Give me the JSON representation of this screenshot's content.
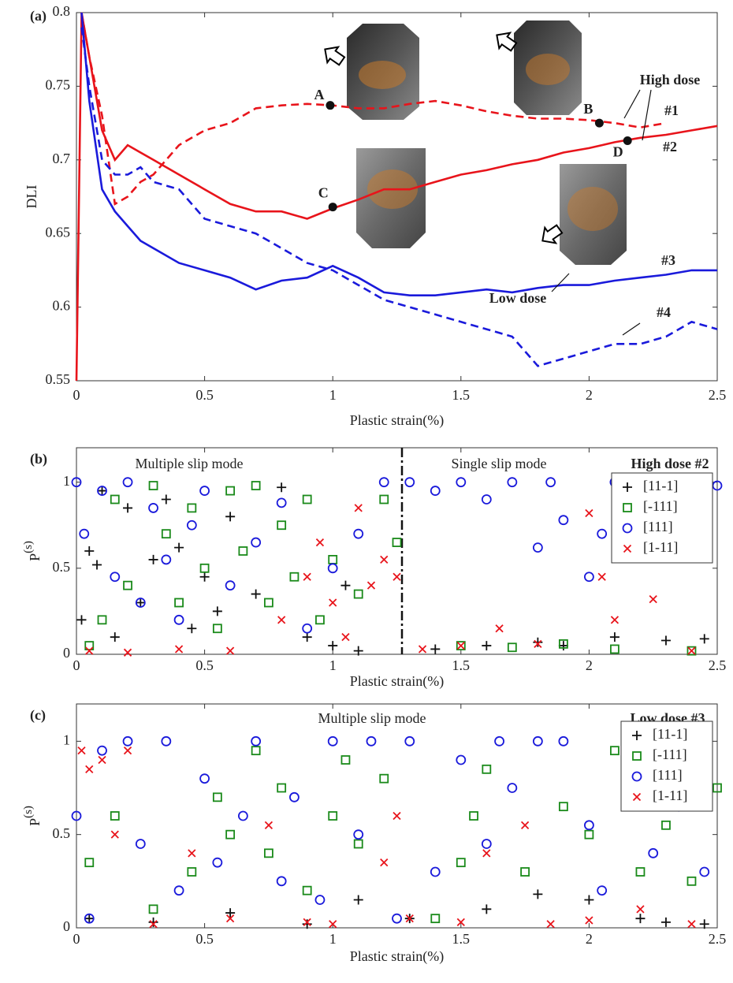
{
  "chart_data": [
    {
      "type": "line",
      "panel_label": "(a)",
      "xlabel": "Plastic strain(%)",
      "ylabel": "DLI",
      "xlim": [
        0,
        2.5
      ],
      "xticks": [
        0,
        0.5,
        1,
        1.5,
        2,
        2.5
      ],
      "ylim": [
        0.55,
        0.8
      ],
      "yticks": [
        0.55,
        0.6,
        0.65,
        0.7,
        0.75,
        0.8
      ],
      "x": [
        0,
        0.02,
        0.05,
        0.1,
        0.15,
        0.2,
        0.25,
        0.3,
        0.4,
        0.5,
        0.6,
        0.7,
        0.8,
        0.9,
        1.0,
        1.1,
        1.2,
        1.3,
        1.4,
        1.5,
        1.6,
        1.7,
        1.8,
        1.9,
        2.0,
        2.1,
        2.2,
        2.3,
        2.4,
        2.5
      ],
      "series": [
        {
          "name": "#1",
          "color": "#e8141b",
          "style": "dashed",
          "values": [
            null,
            0.8,
            0.77,
            0.73,
            0.67,
            0.675,
            0.685,
            0.69,
            0.71,
            0.72,
            0.725,
            0.735,
            0.737,
            0.738,
            0.737,
            0.735,
            0.735,
            0.738,
            0.74,
            0.737,
            0.733,
            0.73,
            0.728,
            0.728,
            0.727,
            0.725,
            0.722,
            0.725,
            null,
            null
          ]
        },
        {
          "name": "#2",
          "color": "#e8141b",
          "style": "solid",
          "values": [
            0.55,
            0.8,
            0.77,
            0.72,
            0.7,
            0.71,
            0.705,
            0.7,
            0.69,
            0.68,
            0.67,
            0.665,
            0.665,
            0.66,
            0.667,
            0.673,
            0.68,
            0.68,
            0.685,
            0.69,
            0.693,
            0.697,
            0.7,
            0.705,
            0.708,
            0.712,
            0.715,
            0.717,
            0.72,
            0.723
          ]
        },
        {
          "name": "#3",
          "color": "#1a1adb",
          "style": "solid",
          "values": [
            null,
            0.8,
            0.74,
            0.68,
            0.665,
            0.655,
            0.645,
            0.64,
            0.63,
            0.625,
            0.62,
            0.612,
            0.618,
            0.62,
            0.628,
            0.62,
            0.61,
            0.608,
            0.608,
            0.61,
            0.612,
            0.61,
            0.613,
            0.615,
            0.615,
            0.618,
            0.62,
            0.622,
            0.625,
            0.625
          ]
        },
        {
          "name": "#4",
          "color": "#1a1adb",
          "style": "dashed",
          "values": [
            null,
            0.79,
            0.75,
            0.7,
            0.69,
            0.69,
            0.695,
            0.685,
            0.68,
            0.66,
            0.655,
            0.65,
            0.64,
            0.63,
            0.625,
            0.615,
            0.605,
            0.6,
            0.595,
            0.59,
            0.585,
            0.58,
            0.56,
            0.565,
            0.57,
            0.575,
            0.575,
            0.58,
            0.59,
            0.585
          ]
        }
      ],
      "points": [
        {
          "label": "A",
          "x": 0.99,
          "y": 0.737
        },
        {
          "label": "B",
          "x": 2.04,
          "y": 0.725
        },
        {
          "label": "C",
          "x": 1.0,
          "y": 0.668
        },
        {
          "label": "D",
          "x": 2.15,
          "y": 0.713
        }
      ],
      "annotations": [
        {
          "text": "High dose",
          "color": "#e8141b"
        },
        {
          "text": "#1",
          "color": "#e8141b"
        },
        {
          "text": "#2",
          "color": "#e8141b"
        },
        {
          "text": "#3",
          "color": "#1a1adb"
        },
        {
          "text": "Low dose",
          "color": "#1a1adb"
        },
        {
          "text": "#4",
          "color": "#1a1adb"
        }
      ]
    },
    {
      "type": "scatter",
      "panel_label": "(b)",
      "xlabel": "Plastic strain(%)",
      "ylabel": "P",
      "ylabel_superscript": "(s)",
      "xlim": [
        0,
        2.5
      ],
      "xticks": [
        0,
        0.5,
        1,
        1.5,
        2,
        2.5
      ],
      "ylim": [
        0,
        1.2
      ],
      "yticks": [
        0,
        0.5,
        1
      ],
      "legend": "upper right",
      "divider_x": 1.27,
      "annotations": [
        {
          "text": "Multiple slip mode",
          "color": "#222"
        },
        {
          "text": "Single slip mode",
          "color": "#222"
        },
        {
          "text": "High dose #2",
          "color": "#e8141b"
        }
      ],
      "series": [
        {
          "name": "[11-1]",
          "color": "#111111",
          "marker": "+",
          "x": [
            0.02,
            0.05,
            0.08,
            0.1,
            0.15,
            0.2,
            0.25,
            0.3,
            0.35,
            0.4,
            0.45,
            0.5,
            0.55,
            0.6,
            0.7,
            0.8,
            0.9,
            1.0,
            1.05,
            1.1,
            1.4,
            1.6,
            1.8,
            1.9,
            2.1,
            2.3,
            2.45
          ],
          "values": [
            0.2,
            0.6,
            0.52,
            0.95,
            0.1,
            0.85,
            0.3,
            0.55,
            0.9,
            0.62,
            0.15,
            0.45,
            0.25,
            0.8,
            0.35,
            0.97,
            0.1,
            0.05,
            0.4,
            0.02,
            0.03,
            0.05,
            0.07,
            0.05,
            0.1,
            0.08,
            0.09
          ]
        },
        {
          "name": "[-111]",
          "color": "#1a8a1a",
          "marker": "s",
          "x": [
            0.05,
            0.1,
            0.15,
            0.2,
            0.3,
            0.35,
            0.4,
            0.45,
            0.5,
            0.55,
            0.6,
            0.65,
            0.7,
            0.75,
            0.8,
            0.85,
            0.9,
            0.95,
            1.0,
            1.1,
            1.2,
            1.25,
            1.5,
            1.7,
            1.9,
            2.1,
            2.4
          ],
          "values": [
            0.05,
            0.2,
            0.9,
            0.4,
            0.98,
            0.7,
            0.3,
            0.85,
            0.5,
            0.15,
            0.95,
            0.6,
            0.98,
            0.3,
            0.75,
            0.45,
            0.9,
            0.2,
            0.55,
            0.35,
            0.9,
            0.65,
            0.05,
            0.04,
            0.06,
            0.03,
            0.02
          ]
        },
        {
          "name": "[111]",
          "color": "#1a1adb",
          "marker": "o",
          "x": [
            0,
            0.03,
            0.1,
            0.15,
            0.2,
            0.25,
            0.3,
            0.35,
            0.4,
            0.45,
            0.5,
            0.6,
            0.7,
            0.8,
            0.9,
            1.0,
            1.1,
            1.2,
            1.3,
            1.4,
            1.5,
            1.6,
            1.7,
            1.8,
            1.85,
            1.9,
            2.0,
            2.05,
            2.1,
            2.2,
            2.3,
            2.4,
            2.5
          ],
          "values": [
            1,
            0.7,
            0.95,
            0.45,
            1,
            0.3,
            0.85,
            0.55,
            0.2,
            0.75,
            0.95,
            0.4,
            0.65,
            0.88,
            0.15,
            0.5,
            0.7,
            1,
            1,
            0.95,
            1,
            0.9,
            1,
            0.62,
            1,
            0.78,
            0.45,
            0.7,
            1,
            1,
            1,
            1,
            0.98
          ]
        },
        {
          "name": "[1-11]",
          "color": "#e8141b",
          "marker": "x",
          "x": [
            0.05,
            0.2,
            0.4,
            0.6,
            0.8,
            0.9,
            0.95,
            1.0,
            1.05,
            1.1,
            1.15,
            1.2,
            1.25,
            1.35,
            1.5,
            1.65,
            1.8,
            2.0,
            2.05,
            2.1,
            2.25,
            2.4
          ],
          "values": [
            0.02,
            0.01,
            0.03,
            0.02,
            0.2,
            0.45,
            0.65,
            0.3,
            0.1,
            0.85,
            0.4,
            0.55,
            0.45,
            0.03,
            0.05,
            0.15,
            0.06,
            0.82,
            0.45,
            0.2,
            0.32,
            0.02
          ]
        }
      ]
    },
    {
      "type": "scatter",
      "panel_label": "(c)",
      "xlabel": "Plastic strain(%)",
      "ylabel": "P",
      "ylabel_superscript": "(s)",
      "xlim": [
        0,
        2.5
      ],
      "xticks": [
        0,
        0.5,
        1,
        1.5,
        2,
        2.5
      ],
      "ylim": [
        0,
        1.2
      ],
      "yticks": [
        0,
        0.5,
        1
      ],
      "legend": "upper right",
      "annotations": [
        {
          "text": "Multiple slip mode",
          "color": "#222"
        },
        {
          "text": "Low dose #3",
          "color": "#1a1adb"
        }
      ],
      "series": [
        {
          "name": "[11-1]",
          "color": "#111111",
          "marker": "+",
          "x": [
            0.05,
            0.3,
            0.6,
            0.9,
            1.1,
            1.3,
            1.6,
            1.8,
            2.0,
            2.2,
            2.3,
            2.45
          ],
          "values": [
            0.05,
            0.03,
            0.08,
            0.02,
            0.15,
            0.05,
            0.1,
            0.18,
            0.15,
            0.05,
            0.03,
            0.02
          ]
        },
        {
          "name": "[-111]",
          "color": "#1a8a1a",
          "marker": "s",
          "x": [
            0.05,
            0.15,
            0.3,
            0.45,
            0.55,
            0.6,
            0.7,
            0.75,
            0.8,
            0.9,
            1.0,
            1.05,
            1.1,
            1.2,
            1.4,
            1.5,
            1.55,
            1.6,
            1.75,
            1.9,
            2.0,
            2.1,
            2.2,
            2.3,
            2.4,
            2.5
          ],
          "values": [
            0.35,
            0.6,
            0.1,
            0.3,
            0.7,
            0.5,
            0.95,
            0.4,
            0.75,
            0.2,
            0.6,
            0.9,
            0.45,
            0.8,
            0.05,
            0.35,
            0.6,
            0.85,
            0.3,
            0.65,
            0.5,
            0.95,
            0.3,
            0.55,
            0.25,
            0.75
          ]
        },
        {
          "name": "[111]",
          "color": "#1a1adb",
          "marker": "o",
          "x": [
            0,
            0.05,
            0.1,
            0.2,
            0.25,
            0.35,
            0.4,
            0.5,
            0.55,
            0.65,
            0.7,
            0.8,
            0.85,
            0.95,
            1.0,
            1.1,
            1.15,
            1.25,
            1.3,
            1.4,
            1.5,
            1.6,
            1.65,
            1.7,
            1.8,
            1.9,
            2.0,
            2.05,
            2.15,
            2.25,
            2.35,
            2.45
          ],
          "values": [
            0.6,
            0.05,
            0.95,
            1,
            0.45,
            1,
            0.2,
            0.8,
            0.35,
            0.6,
            1,
            0.25,
            0.7,
            0.15,
            1,
            0.5,
            1,
            0.05,
            1,
            0.3,
            0.9,
            0.45,
            1,
            0.75,
            1,
            1,
            0.55,
            0.2,
            0.85,
            0.4,
            0.65,
            0.3
          ]
        },
        {
          "name": "[1-11]",
          "color": "#e8141b",
          "marker": "x",
          "x": [
            0.02,
            0.05,
            0.1,
            0.15,
            0.2,
            0.3,
            0.45,
            0.6,
            0.75,
            0.9,
            1.0,
            1.2,
            1.25,
            1.3,
            1.5,
            1.6,
            1.75,
            1.85,
            2.0,
            2.2,
            2.4
          ],
          "values": [
            0.95,
            0.85,
            0.9,
            0.5,
            0.95,
            0.02,
            0.4,
            0.05,
            0.55,
            0.03,
            0.02,
            0.35,
            0.6,
            0.05,
            0.03,
            0.4,
            0.55,
            0.02,
            0.04,
            0.1,
            0.02
          ]
        }
      ]
    }
  ]
}
